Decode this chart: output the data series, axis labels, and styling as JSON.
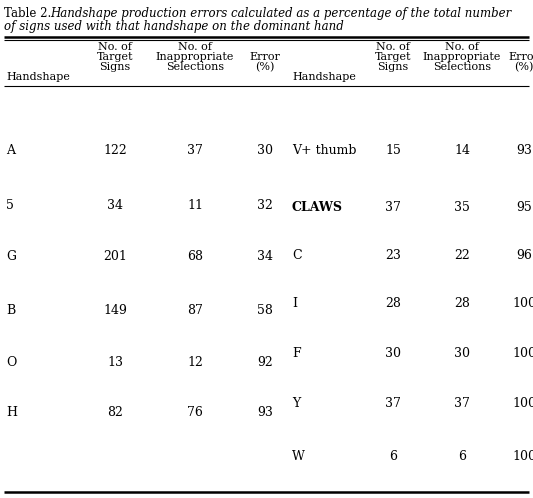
{
  "bg_color": "#ffffff",
  "text_color": "#000000",
  "title_normal": "Table 2. ",
  "title_italic": "Handshape production errors calculated as a percentage of the total number",
  "title_line2": "of signs used with that handshape on the dominant hand",
  "left_rows": [
    {
      "label": "A",
      "target": 122,
      "inappropriate": 37,
      "error": 30
    },
    {
      "label": "5",
      "target": 34,
      "inappropriate": 11,
      "error": 32
    },
    {
      "label": "G",
      "target": 201,
      "inappropriate": 68,
      "error": 34
    },
    {
      "label": "B",
      "target": 149,
      "inappropriate": 87,
      "error": 58
    },
    {
      "label": "O",
      "target": 13,
      "inappropriate": 12,
      "error": 92
    },
    {
      "label": "H",
      "target": 82,
      "inappropriate": 76,
      "error": 93
    }
  ],
  "right_rows": [
    {
      "label": "V+ thumb",
      "target": 15,
      "inappropriate": 14,
      "error": 93
    },
    {
      "label": "CLAWS",
      "target": 37,
      "inappropriate": 35,
      "error": 95
    },
    {
      "label": "C",
      "target": 23,
      "inappropriate": 22,
      "error": 96
    },
    {
      "label": "I",
      "target": 28,
      "inappropriate": 28,
      "error": 100
    },
    {
      "label": "F",
      "target": 30,
      "inappropriate": 30,
      "error": 100
    },
    {
      "label": "Y",
      "target": 37,
      "inappropriate": 37,
      "error": 100
    },
    {
      "label": "W",
      "target": 6,
      "inappropriate": 6,
      "error": 100
    }
  ],
  "title_fontsize": 8.5,
  "header_fontsize": 8.0,
  "body_fontsize": 9.0,
  "fig_width": 5.33,
  "fig_height": 4.98,
  "dpi": 100
}
